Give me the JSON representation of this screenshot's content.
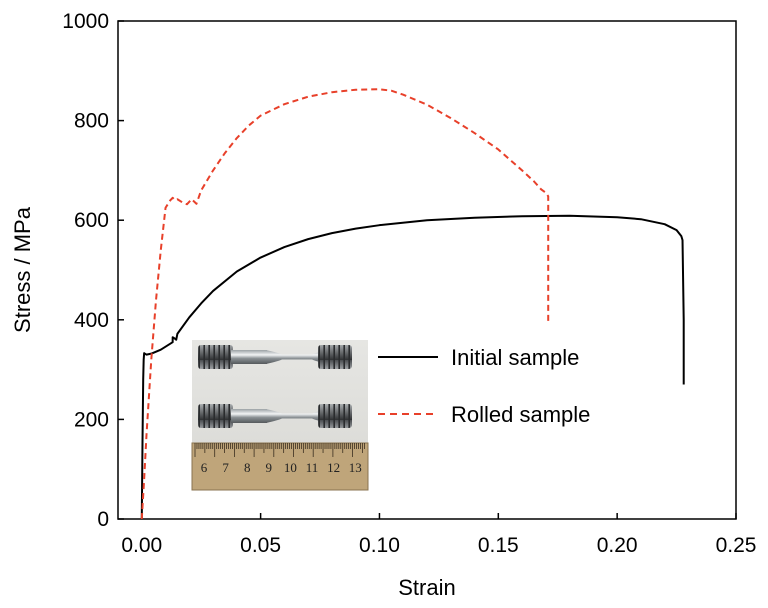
{
  "chart_data": {
    "type": "line",
    "title": "",
    "xlabel": "Strain",
    "ylabel": "Stress / MPa",
    "xlim": [
      -0.01,
      0.25
    ],
    "ylim": [
      0,
      1000
    ],
    "xticks": [
      "0.00",
      "0.05",
      "0.10",
      "0.15",
      "0.20",
      "0.25"
    ],
    "xtick_values": [
      0.0,
      0.05,
      0.1,
      0.15,
      0.2,
      0.25
    ],
    "yticks": [
      "0",
      "200",
      "400",
      "600",
      "800",
      "1000"
    ],
    "ytick_values": [
      0,
      200,
      400,
      600,
      800,
      1000
    ],
    "grid": false,
    "legend_position": "center-right",
    "series": [
      {
        "name": "Initial sample",
        "color": "#000000",
        "dash": "solid",
        "x": [
          0.0,
          0.0003,
          0.0006,
          0.0008,
          0.001,
          0.002,
          0.004,
          0.006,
          0.008,
          0.01,
          0.012,
          0.013,
          0.013,
          0.014,
          0.0145,
          0.015,
          0.02,
          0.025,
          0.03,
          0.04,
          0.05,
          0.06,
          0.07,
          0.08,
          0.09,
          0.1,
          0.12,
          0.14,
          0.16,
          0.18,
          0.2,
          0.21,
          0.22,
          0.225,
          0.227,
          0.2275,
          0.228,
          0.228
        ],
        "y": [
          0,
          150,
          280,
          320,
          333,
          330,
          332,
          336,
          340,
          346,
          352,
          355,
          365,
          362,
          360,
          372,
          405,
          433,
          458,
          497,
          525,
          546,
          562,
          574,
          583,
          590,
          600,
          605,
          608,
          609,
          606,
          602,
          592,
          580,
          568,
          560,
          400,
          270
        ]
      },
      {
        "name": "Rolled sample",
        "color": "#e8402a",
        "dash": "dashed",
        "x": [
          0.0,
          0.001,
          0.002,
          0.004,
          0.006,
          0.008,
          0.01,
          0.012,
          0.013,
          0.014,
          0.015,
          0.017,
          0.019,
          0.021,
          0.023,
          0.025,
          0.03,
          0.035,
          0.04,
          0.045,
          0.05,
          0.06,
          0.07,
          0.08,
          0.09,
          0.1,
          0.105,
          0.11,
          0.12,
          0.13,
          0.14,
          0.15,
          0.16,
          0.165,
          0.168,
          0.17,
          0.171,
          0.171,
          0.171
        ],
        "y": [
          0,
          80,
          170,
          320,
          440,
          540,
          625,
          640,
          645,
          640,
          642,
          636,
          632,
          642,
          633,
          660,
          700,
          735,
          765,
          790,
          810,
          833,
          848,
          857,
          862,
          863,
          860,
          852,
          832,
          805,
          775,
          742,
          700,
          678,
          662,
          655,
          648,
          500,
          395
        ]
      }
    ],
    "inset_photo": {
      "description_visible": "photograph of two threaded tensile specimens above a ruler",
      "ruler_numbers": [
        "6",
        "7",
        "8",
        "9",
        "10",
        "11",
        "12",
        "13"
      ]
    }
  }
}
